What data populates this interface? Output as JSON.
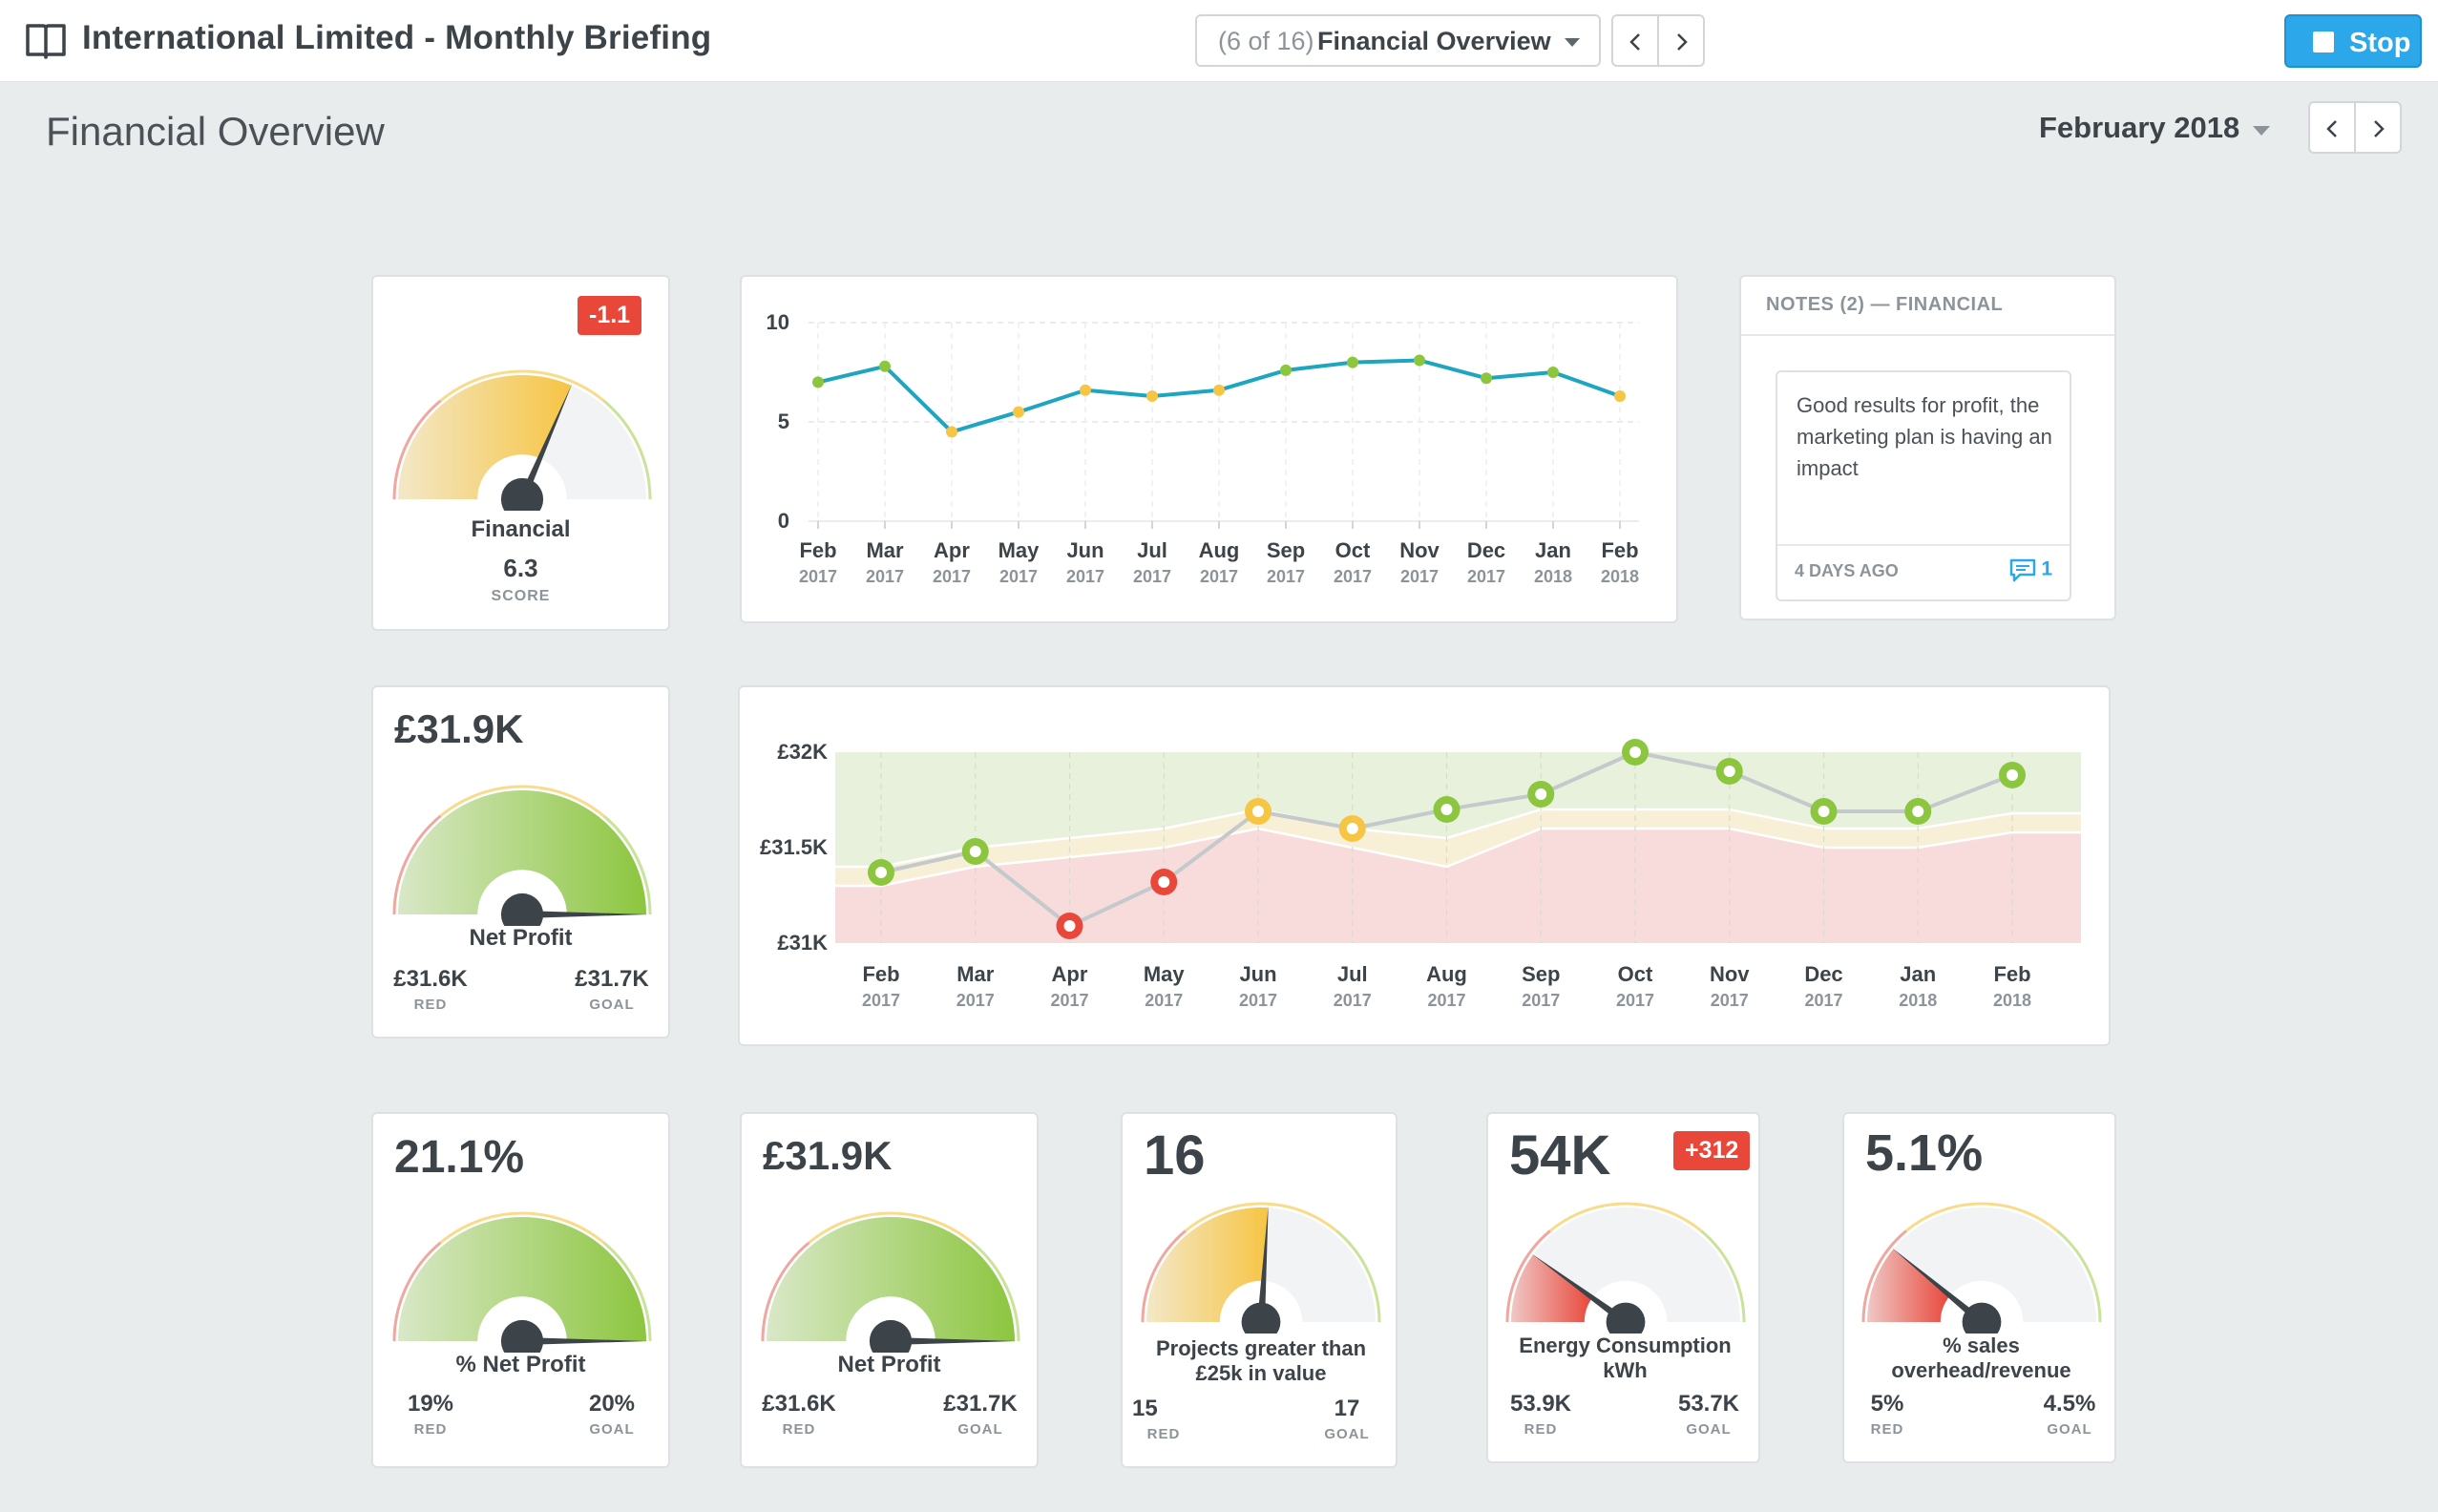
{
  "app": {
    "title": "International Limited - Monthly Briefing"
  },
  "header": {
    "slide_counter": "(6 of 16)",
    "slide_name": "Financial Overview",
    "stop_label": "Stop"
  },
  "page": {
    "title": "Financial Overview",
    "period": "February 2018"
  },
  "score_card": {
    "badge": "-1.1",
    "name": "Financial",
    "score": "6.3",
    "score_label": "SCORE",
    "fill_fraction": 0.63,
    "color": "#f6c544"
  },
  "notes": {
    "header": "NOTES (2) — FINANCIAL",
    "text": "Good results for profit, the marketing plan is having an impact",
    "age": "4 DAYS AGO",
    "comment_count": "1"
  },
  "net_profit_card": {
    "value": "£31.9K",
    "name": "Net Profit",
    "red_value": "£31.6K",
    "red_label": "RED",
    "goal_value": "£31.7K",
    "goal_label": "GOAL",
    "fill_fraction": 1.0,
    "color": "#8cc63f"
  },
  "kpis": [
    {
      "value": "21.1%",
      "name": "% Net Profit",
      "red_value": "19%",
      "red_label": "RED",
      "goal_value": "20%",
      "goal_label": "GOAL",
      "fill_fraction": 1.0,
      "color": "#8cc63f"
    },
    {
      "value": "£31.9K",
      "name": "Net Profit",
      "red_value": "£31.6K",
      "red_label": "RED",
      "goal_value": "£31.7K",
      "goal_label": "GOAL",
      "fill_fraction": 1.0,
      "color": "#8cc63f"
    },
    {
      "value": "16",
      "name": "Projects greater than £25k in value",
      "red_value": "15",
      "red_label": "RED",
      "goal_value": "17",
      "goal_label": "GOAL",
      "fill_fraction": 0.52,
      "color": "#f6c544"
    },
    {
      "value": "54K",
      "badge": "+312",
      "name": "Energy Consumption kWh",
      "red_value": "53.9K",
      "red_label": "RED",
      "goal_value": "53.7K",
      "goal_label": "GOAL",
      "fill_fraction": 0.2,
      "color": "#e8473a"
    },
    {
      "value": "5.1%",
      "name": "% sales overhead/revenue",
      "red_value": "5%",
      "red_label": "RED",
      "goal_value": "4.5%",
      "goal_label": "GOAL",
      "fill_fraction": 0.22,
      "color": "#e8473a"
    }
  ],
  "chart_data": [
    {
      "type": "line",
      "categories": [
        "Feb",
        "Mar",
        "Apr",
        "May",
        "Jun",
        "Jul",
        "Aug",
        "Sep",
        "Oct",
        "Nov",
        "Dec",
        "Jan",
        "Feb"
      ],
      "category_years": [
        "2017",
        "2017",
        "2017",
        "2017",
        "2017",
        "2017",
        "2017",
        "2017",
        "2017",
        "2017",
        "2017",
        "2018",
        "2018"
      ],
      "values": [
        7.0,
        7.8,
        4.5,
        5.5,
        6.6,
        6.3,
        6.6,
        7.6,
        8.0,
        8.1,
        7.2,
        7.5,
        6.3
      ],
      "point_colors": [
        "#8cc63f",
        "#8cc63f",
        "#f6c544",
        "#f6c544",
        "#f6c544",
        "#f6c544",
        "#f6c544",
        "#8cc63f",
        "#8cc63f",
        "#8cc63f",
        "#8cc63f",
        "#8cc63f",
        "#f6c544"
      ],
      "line_color": "#1ea5bf",
      "ylim": [
        0,
        10
      ],
      "yticks": [
        "0",
        "5",
        "10"
      ]
    },
    {
      "type": "line",
      "categories": [
        "Feb",
        "Mar",
        "Apr",
        "May",
        "Jun",
        "Jul",
        "Aug",
        "Sep",
        "Oct",
        "Nov",
        "Dec",
        "Jan",
        "Feb"
      ],
      "category_years": [
        "2017",
        "2017",
        "2017",
        "2017",
        "2017",
        "2017",
        "2017",
        "2017",
        "2017",
        "2017",
        "2017",
        "2018",
        "2018"
      ],
      "values": [
        31.37,
        31.48,
        31.09,
        31.32,
        31.69,
        31.6,
        31.7,
        31.78,
        32.0,
        31.9,
        31.69,
        31.69,
        31.88
      ],
      "red_band": [
        31.3,
        31.4,
        31.45,
        31.5,
        31.6,
        31.5,
        31.4,
        31.6,
        31.6,
        31.6,
        31.5,
        31.5,
        31.58
      ],
      "goal_band": [
        31.4,
        31.5,
        31.55,
        31.6,
        31.7,
        31.6,
        31.55,
        31.7,
        31.7,
        31.7,
        31.6,
        31.6,
        31.68
      ],
      "point_colors": [
        "#8cc63f",
        "#8cc63f",
        "#e8473a",
        "#e8473a",
        "#f6c544",
        "#f6c544",
        "#8cc63f",
        "#8cc63f",
        "#8cc63f",
        "#8cc63f",
        "#8cc63f",
        "#8cc63f",
        "#8cc63f"
      ],
      "line_color": "#c4c9cc",
      "ylim": [
        31,
        32
      ],
      "yticks": [
        "£31K",
        "£31.5K",
        "£32K"
      ]
    }
  ]
}
